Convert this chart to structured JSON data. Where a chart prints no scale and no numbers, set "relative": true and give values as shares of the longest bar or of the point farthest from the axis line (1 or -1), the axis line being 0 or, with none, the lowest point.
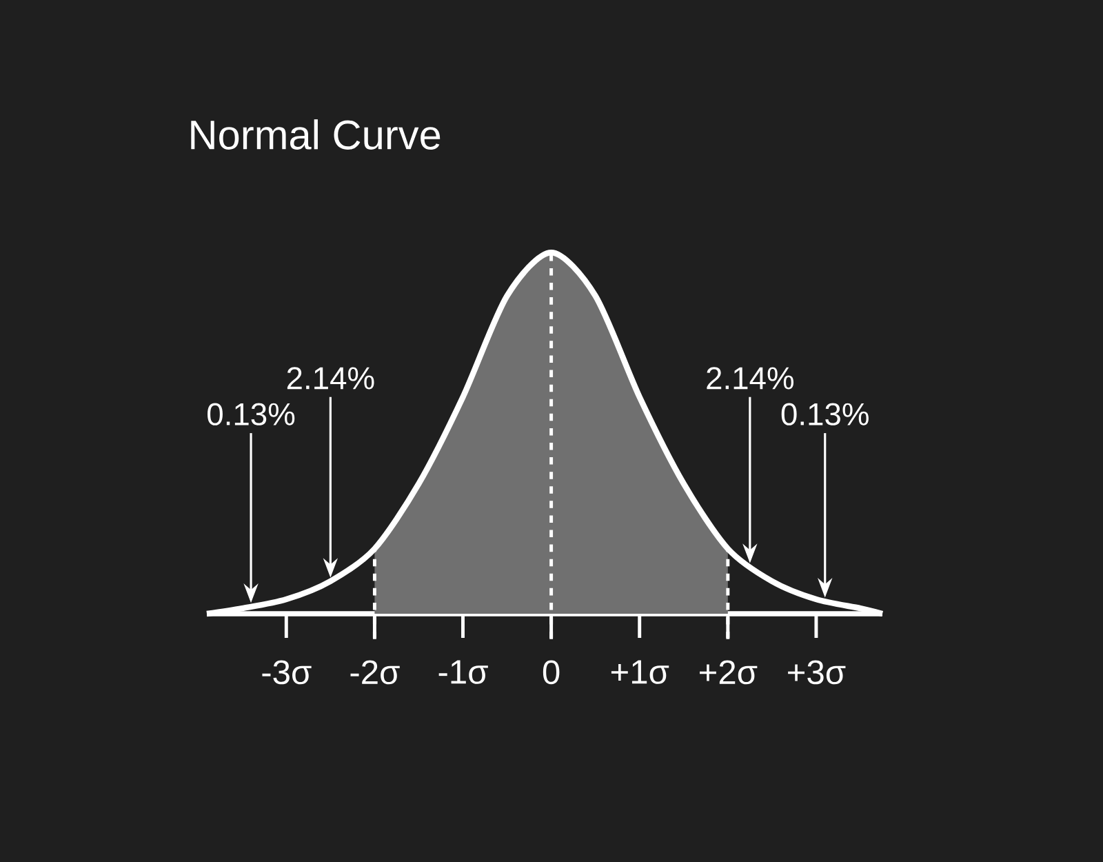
{
  "chart_data": {
    "type": "line",
    "title": "Normal Curve",
    "relative": true,
    "xlim": [
      -3.9,
      3.75
    ],
    "xticks": [
      {
        "value": -3,
        "label": "-3σ"
      },
      {
        "value": -2,
        "label": "-2σ"
      },
      {
        "value": -1,
        "label": "-1σ"
      },
      {
        "value": 0,
        "label": "0"
      },
      {
        "value": 1,
        "label": "+1σ"
      },
      {
        "value": 2,
        "label": "+2σ"
      },
      {
        "value": 3,
        "label": "+3σ"
      }
    ],
    "series": [
      {
        "type": "area",
        "color": "#707070",
        "x": [
          -2,
          -1.5,
          -1,
          -0.5,
          0,
          0.5,
          1,
          1.5,
          2
        ],
        "values": [
          0.18,
          0.36,
          0.6,
          0.88,
          1,
          0.88,
          0.6,
          0.36,
          0.18
        ]
      },
      {
        "color": "#ffffff",
        "x": [
          -3.9,
          -3.5,
          -3,
          -2.5,
          -2,
          -1.5,
          -1,
          -0.5,
          0,
          0.5,
          1,
          1.5,
          2,
          2.5,
          3,
          3.5,
          3.75
        ],
        "values": [
          0,
          0.015,
          0.04,
          0.09,
          0.18,
          0.36,
          0.6,
          0.88,
          1,
          0.88,
          0.6,
          0.36,
          0.18,
          0.09,
          0.04,
          0.015,
          0
        ]
      }
    ],
    "ref_lines": [
      {
        "axis": "x",
        "value": -2,
        "line_style": "dashed"
      },
      {
        "axis": "x",
        "value": 0,
        "line_style": "dashed"
      },
      {
        "axis": "x",
        "value": 2,
        "line_style": "dashed"
      }
    ],
    "annotations": [
      "0.13%",
      "2.14%",
      "2.14%",
      "0.13%"
    ]
  }
}
